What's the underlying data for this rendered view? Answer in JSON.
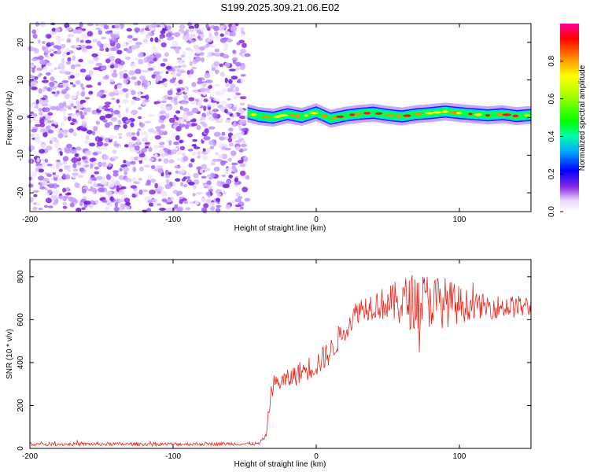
{
  "figure": {
    "title": "S199.2025.309.21.06.E02"
  },
  "chart_data": [
    {
      "type": "heatmap",
      "title": "S199.2025.309.21.06.E02",
      "xlabel": "Height of straight line (km)",
      "ylabel": "Frequency (Hz)",
      "xlim": [
        -200,
        150
      ],
      "ylim": [
        -25,
        25
      ],
      "xticks": [
        -200,
        -100,
        0,
        100
      ],
      "yticks": [
        -20,
        -10,
        0,
        10,
        20
      ],
      "noise_region_x": [
        -200,
        -48
      ],
      "signal_band": {
        "x_start": -48,
        "x_end": 150,
        "center_freq_points": [
          [
            -48,
            1.2
          ],
          [
            -40,
            0.4
          ],
          [
            -30,
            0.0
          ],
          [
            -20,
            0.9
          ],
          [
            -10,
            0.2
          ],
          [
            0,
            1.4
          ],
          [
            10,
            -0.3
          ],
          [
            20,
            0.5
          ],
          [
            30,
            1.0
          ],
          [
            40,
            1.3
          ],
          [
            50,
            0.7
          ],
          [
            60,
            0.3
          ],
          [
            70,
            0.9
          ],
          [
            80,
            1.2
          ],
          [
            90,
            1.6
          ],
          [
            100,
            1.2
          ],
          [
            110,
            0.9
          ],
          [
            120,
            0.6
          ],
          [
            130,
            0.9
          ],
          [
            140,
            0.4
          ],
          [
            150,
            0.7
          ]
        ],
        "half_width_hz": 1.6
      },
      "colorbar": {
        "label": "Normalized spectral amplitude",
        "range": [
          0.0,
          1.0
        ],
        "ticks": [
          "0.0",
          "0.2",
          "0.4",
          "0.6",
          "0.8"
        ]
      }
    },
    {
      "type": "line",
      "xlabel": "Height of straight line (km)",
      "ylabel": "SNR (10 * v/v)",
      "xlim": [
        -200,
        150
      ],
      "ylim": [
        0,
        880
      ],
      "xticks": [
        -200,
        -100,
        0,
        100
      ],
      "yticks": [
        0,
        200,
        400,
        600,
        800
      ],
      "series": [
        {
          "name": "SNR",
          "color": "#e8281e",
          "trend": [
            [
              -200,
              20
            ],
            [
              -100,
              20
            ],
            [
              -40,
              22
            ],
            [
              -35,
              60
            ],
            [
              -32,
              240
            ],
            [
              -30,
              300
            ],
            [
              -20,
              320
            ],
            [
              -10,
              360
            ],
            [
              0,
              390
            ],
            [
              10,
              450
            ],
            [
              20,
              560
            ],
            [
              30,
              650
            ],
            [
              40,
              670
            ],
            [
              60,
              680
            ],
            [
              80,
              690
            ],
            [
              100,
              670
            ],
            [
              120,
              660
            ],
            [
              150,
              660
            ]
          ],
          "noise_amplitude": [
            [
              -200,
              8
            ],
            [
              -35,
              8
            ],
            [
              -32,
              40
            ],
            [
              0,
              60
            ],
            [
              30,
              60
            ],
            [
              50,
              80
            ],
            [
              60,
              120
            ],
            [
              70,
              140
            ],
            [
              90,
              120
            ],
            [
              110,
              60
            ],
            [
              150,
              50
            ]
          ]
        }
      ]
    }
  ]
}
